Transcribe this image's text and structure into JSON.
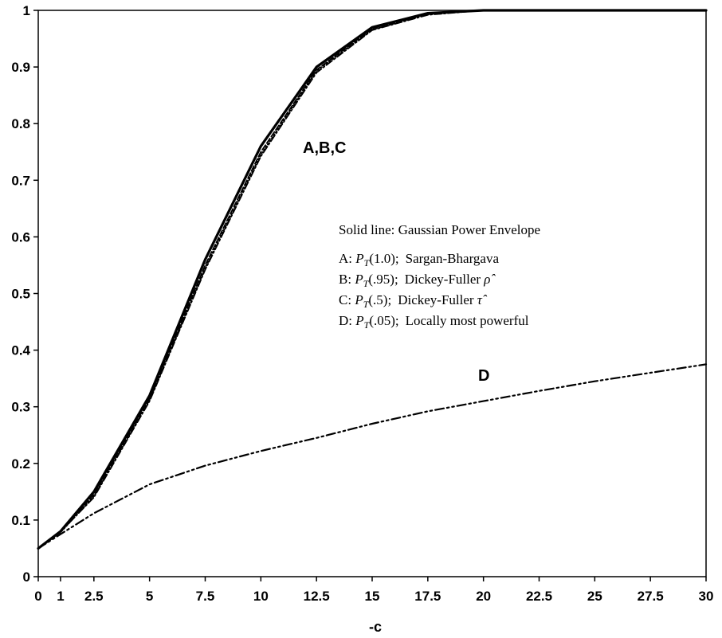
{
  "chart_data": {
    "type": "line",
    "title": "",
    "xlabel": "-c",
    "ylabel": "",
    "xlim": [
      0,
      30
    ],
    "ylim": [
      0,
      1
    ],
    "x_ticks": [
      "0",
      "1",
      "2.5",
      "5",
      "7.5",
      "10",
      "12.5",
      "15",
      "17.5",
      "20",
      "22.5",
      "25",
      "27.5",
      "30"
    ],
    "y_ticks": [
      "0",
      "0.1",
      "0.2",
      "0.3",
      "0.4",
      "0.5",
      "0.6",
      "0.7",
      "0.8",
      "0.9",
      "1"
    ],
    "categories": [
      "0",
      "1",
      "2.5",
      "5",
      "7.5",
      "10",
      "12.5",
      "15",
      "17.5",
      "20",
      "22.5",
      "25",
      "27.5",
      "30"
    ],
    "grid": false,
    "series": [
      {
        "name": "Solid line: Gaussian Power Envelope",
        "style": "solid",
        "values": [
          0.05,
          0.08,
          0.15,
          0.32,
          0.56,
          0.76,
          0.9,
          0.97,
          0.995,
          1.0,
          1.0,
          1.0,
          1.0,
          1.0
        ]
      },
      {
        "name": "A",
        "style": "dashed",
        "values": [
          0.05,
          0.08,
          0.145,
          0.315,
          0.55,
          0.75,
          0.895,
          0.968,
          0.994,
          1.0,
          1.0,
          1.0,
          1.0,
          1.0
        ]
      },
      {
        "name": "B",
        "style": "dotted",
        "values": [
          0.05,
          0.078,
          0.142,
          0.312,
          0.545,
          0.745,
          0.893,
          0.966,
          0.993,
          1.0,
          1.0,
          1.0,
          1.0,
          1.0
        ]
      },
      {
        "name": "C",
        "style": "dashdot",
        "values": [
          0.05,
          0.079,
          0.14,
          0.31,
          0.542,
          0.742,
          0.89,
          0.965,
          0.992,
          1.0,
          1.0,
          1.0,
          1.0,
          1.0
        ]
      },
      {
        "name": "D",
        "style": "dashdotdot",
        "values": [
          0.05,
          0.075,
          0.112,
          0.163,
          0.196,
          0.222,
          0.245,
          0.27,
          0.292,
          0.31,
          0.328,
          0.345,
          0.36,
          0.375
        ]
      }
    ],
    "annotations": {
      "abc_label": "A,B,C",
      "d_label": "D"
    },
    "legend": {
      "placement": "center-right",
      "header": "Solid line:  Gaussian Power Envelope",
      "entries": [
        {
          "prefix": "A: ",
          "stat": "P",
          "sub": "T",
          "arg": "(1.0);",
          "desc": "Sargan-Bhargava"
        },
        {
          "prefix": "B: ",
          "stat": "P",
          "sub": "T",
          "arg": "(.95);",
          "desc": "Dickey-Fuller ",
          "sym": "ρ̂"
        },
        {
          "prefix": "C: ",
          "stat": "P",
          "sub": "T",
          "arg": "(.5);",
          "desc": "Dickey-Fuller ",
          "sym": "τ̂"
        },
        {
          "prefix": "D: ",
          "stat": "P",
          "sub": "T",
          "arg": "(.05);",
          "desc": "Locally most powerful"
        }
      ]
    }
  }
}
